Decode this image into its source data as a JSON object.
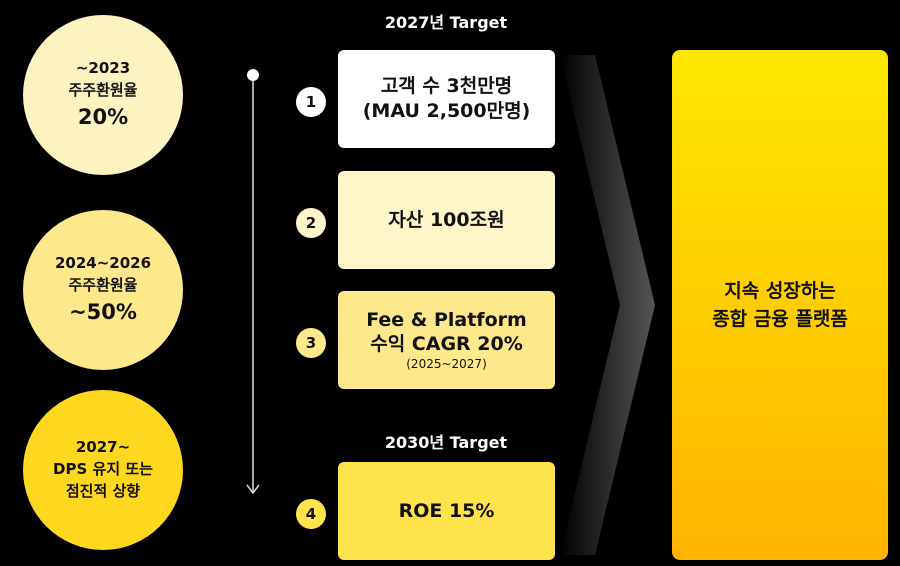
{
  "headers": {
    "target_2027": "2027년 Target",
    "target_2030": "2030년 Target"
  },
  "returns": [
    {
      "lines": [
        "~2023",
        "주주환원율",
        "20%"
      ]
    },
    {
      "lines": [
        "2024~2026",
        "주주환원율",
        "~50%"
      ]
    },
    {
      "lines": [
        "2027~",
        "DPS 유지 또는",
        "점진적 상향"
      ]
    }
  ],
  "targets": [
    {
      "number": "1",
      "lines": [
        "고객 수 3천만명",
        "(MAU 2,500만명)"
      ]
    },
    {
      "number": "2",
      "lines": [
        "자산 100조원"
      ]
    },
    {
      "number": "3",
      "lines": [
        "Fee & Platform",
        "수익 CAGR 20%",
        "(2025~2027)"
      ]
    },
    {
      "number": "4",
      "lines": [
        "ROE 15%"
      ]
    }
  ],
  "goal": {
    "lines": [
      "지속 성장하는",
      "종합 금융 플랫폼"
    ]
  }
}
